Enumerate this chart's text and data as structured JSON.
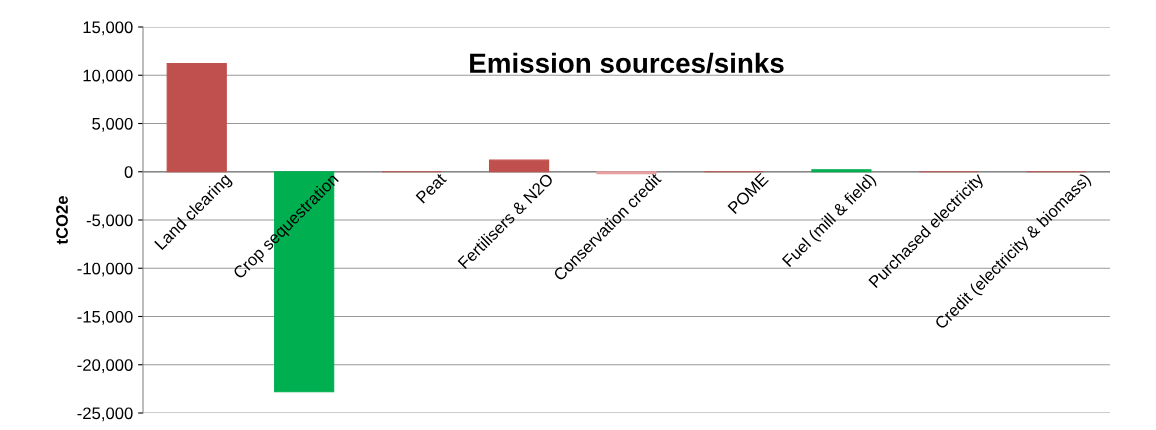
{
  "chart_data": {
    "type": "bar",
    "title": "Emission sources/sinks",
    "ylabel": "tCO2e",
    "categories": [
      "Land clearing",
      "Crop sequestration",
      "Peat",
      "Fertilisers & N2O",
      "Conservation credit",
      "POME",
      "Fuel (mill & field)",
      "Purchased electricity",
      "Credit (electricity & biomass)"
    ],
    "values": [
      11200,
      -22800,
      0,
      1200,
      -200,
      0,
      200,
      0,
      0
    ],
    "colors": [
      "#c0504d",
      "#00b050",
      "#c0504d",
      "#c0504d",
      "#e6a0a0",
      "#c0504d",
      "#00b050",
      "#c0504d",
      "#c0504d"
    ],
    "ylim": [
      -25000,
      15000
    ],
    "yticks": [
      {
        "value": -25000,
        "label": "-25,000"
      },
      {
        "value": -20000,
        "label": "-20,000"
      },
      {
        "value": -15000,
        "label": "-15,000"
      },
      {
        "value": -10000,
        "label": "-10,000"
      },
      {
        "value": -5000,
        "label": "-5,000"
      },
      0,
      {
        "value": 5000,
        "label": "5,000"
      },
      {
        "value": 10000,
        "label": "10,000"
      },
      {
        "value": 15000,
        "label": "15,000"
      }
    ],
    "grid": "y",
    "legend": false
  }
}
